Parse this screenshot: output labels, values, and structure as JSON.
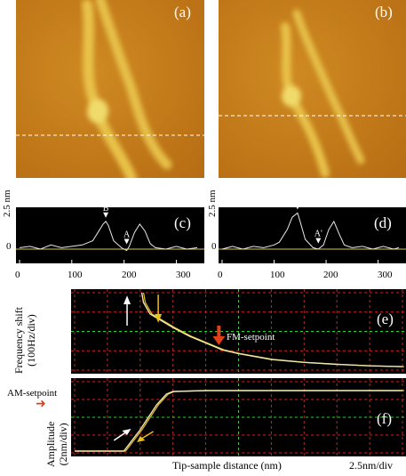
{
  "panels": {
    "a": "(a)",
    "b": "(b)",
    "c": "(c)",
    "d": "(d)",
    "e": "(e)",
    "f": "(f)"
  },
  "profile_c": {
    "y_unit": "2.5 nm",
    "y_zero": "0",
    "x_ticks": [
      "0",
      "100",
      "200",
      "300"
    ],
    "markers": [
      "B",
      "A"
    ]
  },
  "profile_d": {
    "y_unit": "2.5 nm",
    "y_zero": "0",
    "x_ticks": [
      "0",
      "100",
      "200",
      "300"
    ],
    "markers": [
      "B'",
      "A'"
    ]
  },
  "plot_e": {
    "ylabel_line1": "Frequency shift",
    "ylabel_line2": "(100Hz/div)",
    "setpoint_label": "FM-setpoint"
  },
  "plot_f": {
    "ylabel_line1": "Amplitude",
    "ylabel_line2": "(2nm/div)",
    "setpoint_label": "AM-setpoint"
  },
  "x_axis_label": "Tip-sample distance (nm)",
  "x_scale_label": "2.5nm/div",
  "colors": {
    "afm_base": "#c27a17",
    "afm_feature": "#f2e26a",
    "grid_red": "#cc2222",
    "grid_green": "#33cc33",
    "curve": "#f0e6b0",
    "arrow_red": "#e0401a",
    "arrow_white": "#ffffff",
    "arrow_yellow": "#e8c020",
    "profile_line": "#e8e8e8",
    "baseline": "#d8c840"
  },
  "chart_data": [
    {
      "type": "line",
      "panel": "(c)",
      "ylabel": "2.5 nm",
      "x_ticks": [
        0,
        100,
        200,
        300
      ],
      "xlim": [
        0,
        340
      ],
      "series": [
        {
          "x": [
            0,
            20,
            40,
            60,
            80,
            100,
            120,
            140,
            150,
            160,
            165,
            170,
            180,
            195,
            205,
            210,
            220,
            230,
            240,
            250,
            260,
            280,
            300,
            320,
            340
          ],
          "y": [
            0.1,
            0.2,
            0.0,
            0.3,
            0.1,
            0.2,
            0.3,
            0.6,
            1.2,
            1.8,
            2.0,
            1.7,
            0.6,
            0.1,
            -0.1,
            0.2,
            1.2,
            1.8,
            1.3,
            0.4,
            0.1,
            0.0,
            0.2,
            0.0,
            0.1
          ]
        }
      ],
      "annotations": [
        "B",
        "A"
      ]
    },
    {
      "type": "line",
      "panel": "(d)",
      "ylabel": "2.5 nm",
      "x_ticks": [
        0,
        100,
        200,
        300
      ],
      "xlim": [
        0,
        340
      ],
      "series": [
        {
          "x": [
            0,
            20,
            40,
            60,
            80,
            100,
            110,
            125,
            135,
            145,
            150,
            160,
            175,
            185,
            195,
            205,
            215,
            225,
            235,
            250,
            270,
            290,
            310,
            330,
            340
          ],
          "y": [
            0.0,
            0.2,
            0.0,
            0.2,
            0.1,
            0.3,
            0.5,
            1.4,
            2.3,
            2.6,
            2.0,
            0.7,
            0.1,
            0.0,
            0.3,
            1.4,
            2.0,
            1.1,
            0.3,
            0.1,
            0.2,
            0.0,
            0.2,
            0.0,
            0.1
          ]
        }
      ],
      "annotations": [
        "B'",
        "A'"
      ]
    },
    {
      "type": "line",
      "panel": "(e)",
      "xlabel": "Tip-sample distance (nm)",
      "ylabel": "Frequency shift (100Hz/div)",
      "x_div": [
        0,
        10
      ],
      "y_div": [
        0,
        4
      ],
      "series": [
        {
          "x": [
            2.05,
            2.1,
            2.3,
            2.6,
            3.0,
            3.5,
            4.0,
            4.5,
            5.0,
            6.0,
            7.0,
            8.0,
            9.0,
            10.0
          ],
          "y": [
            4.0,
            3.5,
            2.9,
            2.6,
            2.2,
            1.75,
            1.4,
            1.05,
            0.85,
            0.55,
            0.4,
            0.3,
            0.22,
            0.18
          ]
        }
      ],
      "annotations": [
        "FM-setpoint"
      ]
    },
    {
      "type": "line",
      "panel": "(f)",
      "ylabel": "Amplitude (2nm/div)",
      "x_div": [
        0,
        10
      ],
      "y_div": [
        0,
        4
      ],
      "series": [
        {
          "x": [
            0.0,
            1.0,
            1.5,
            2.0,
            2.5,
            2.8,
            3.0,
            4.0,
            6.0,
            8.0,
            10.0
          ],
          "y": [
            0.1,
            0.1,
            0.1,
            1.3,
            2.7,
            3.3,
            3.45,
            3.5,
            3.5,
            3.5,
            3.5
          ]
        }
      ],
      "annotations": [
        "AM-setpoint"
      ]
    }
  ]
}
